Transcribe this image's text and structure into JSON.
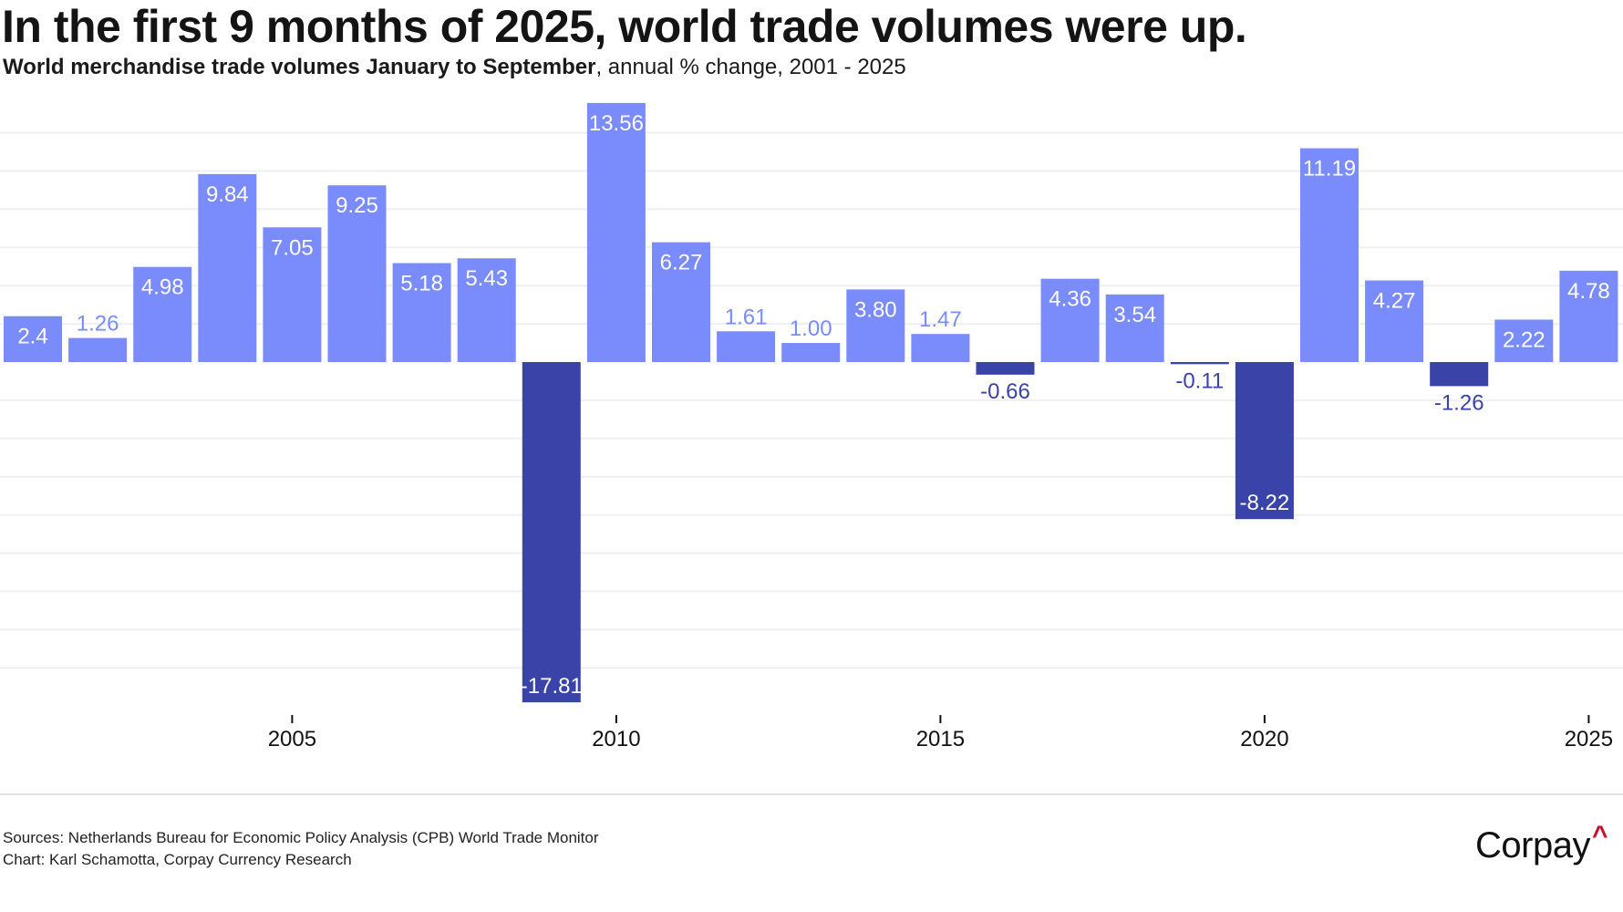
{
  "header": {
    "title": "In the first 9 months of 2025, world trade volumes were up.",
    "subtitle_bold": "World merchandise trade volumes January to September",
    "subtitle_rest": ", annual % change, 2001 - 2025"
  },
  "chart_data": {
    "type": "bar",
    "title": "In the first 9 months of 2025, world trade volumes were up.",
    "subtitle": "World merchandise trade volumes January to September, annual % change, 2001 - 2025",
    "xlabel": "",
    "ylabel": "annual % change",
    "categories": [
      2001,
      2002,
      2003,
      2004,
      2005,
      2006,
      2007,
      2008,
      2009,
      2010,
      2011,
      2012,
      2013,
      2014,
      2015,
      2016,
      2017,
      2018,
      2019,
      2020,
      2021,
      2022,
      2023,
      2024,
      2025
    ],
    "values": [
      2.4,
      1.26,
      4.98,
      9.84,
      7.05,
      9.25,
      5.18,
      5.43,
      -17.81,
      13.56,
      6.27,
      1.61,
      1.0,
      3.8,
      1.47,
      -0.66,
      4.36,
      3.54,
      -0.11,
      -8.22,
      11.19,
      4.27,
      -1.26,
      2.22,
      4.78
    ],
    "labels": [
      "2.4",
      "1.26",
      "4.98",
      "9.84",
      "7.05",
      "9.25",
      "5.18",
      "5.43",
      "-17.81",
      "13.56",
      "6.27",
      "1.61",
      "1.00",
      "3.80",
      "1.47",
      "-0.66",
      "4.36",
      "3.54",
      "-0.11",
      "-8.22",
      "11.19",
      "4.27",
      "-1.26",
      "2.22",
      "4.78"
    ],
    "x_ticks": [
      "2005",
      "2010",
      "2015",
      "2020",
      "2025"
    ],
    "ylim": [
      -17.81,
      13.56
    ],
    "grid_step": 2,
    "grid": true,
    "legend": "none",
    "colors": {
      "positive": "#7a8cfb",
      "negative": "#3a43a7",
      "grid": "#efefef"
    }
  },
  "footer": {
    "sources": "Sources: Netherlands Bureau for Economic Policy Analysis (CPB) World Trade Monitor",
    "credit": "Chart: Karl Schamotta, Corpay Currency Research",
    "logo_text": "Corpay",
    "logo_mark": "^"
  }
}
